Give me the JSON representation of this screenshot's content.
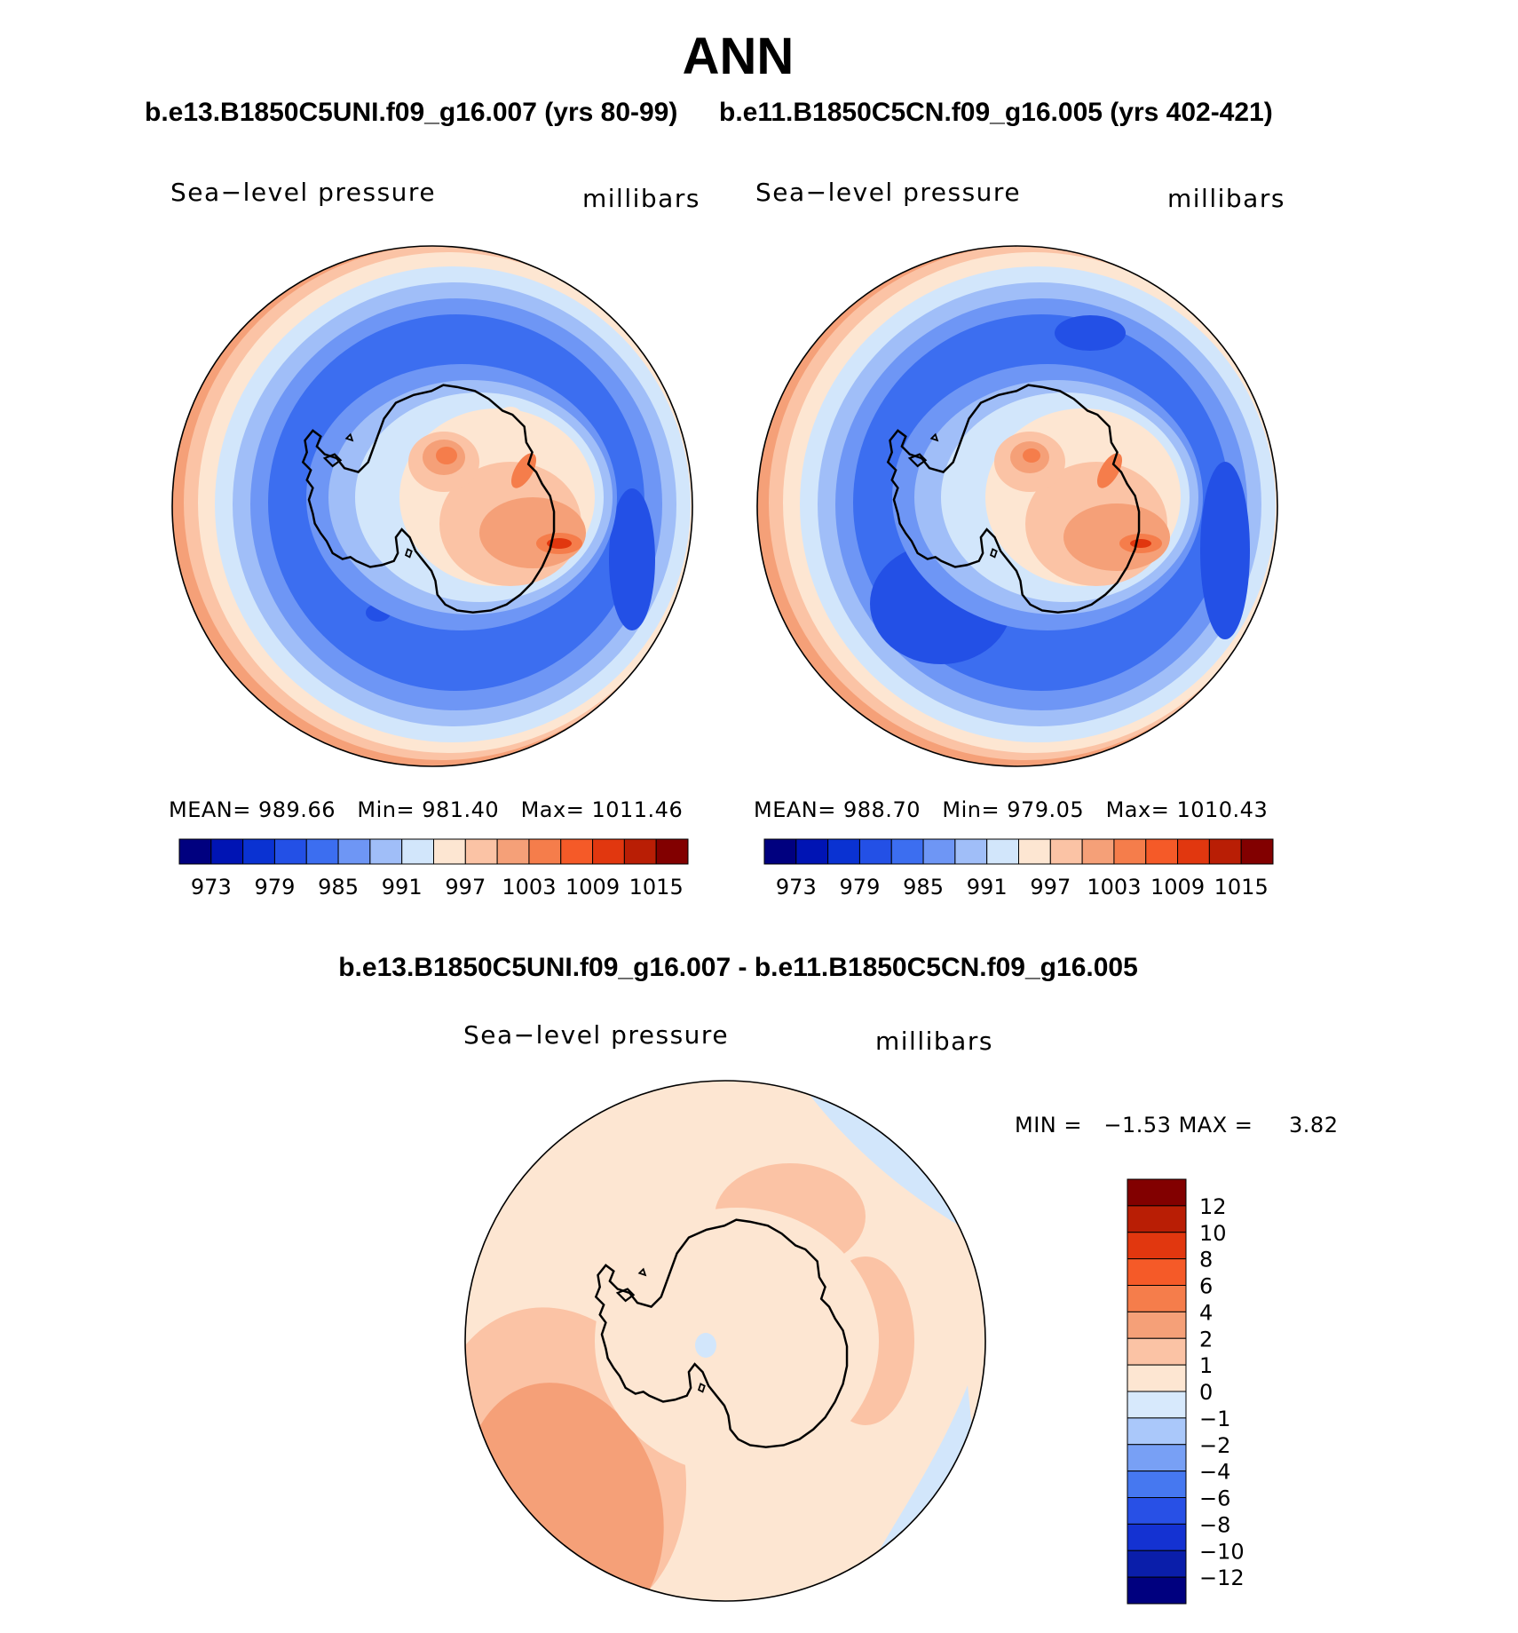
{
  "figure_title": "ANN",
  "panels": [
    {
      "case_title": "b.e13.B1850C5UNI.f09_g16.007 (yrs 80-99)",
      "variable": "Sea−level pressure",
      "units": "millibars",
      "mean_label": "MEAN=",
      "mean": "989.66",
      "min_label": "Min=",
      "min": "981.40",
      "max_label": "Max=",
      "max": "1011.46"
    },
    {
      "case_title": "b.e11.B1850C5CN.f09_g16.005 (yrs 402-421)",
      "variable": "Sea−level pressure",
      "units": "millibars",
      "mean_label": "MEAN=",
      "mean": "988.70",
      "min_label": "Min=",
      "min": "979.05",
      "max_label": "Max=",
      "max": "1010.43"
    }
  ],
  "difference": {
    "title": "b.e13.B1850C5UNI.f09_g16.007 - b.e11.B1850C5CN.f09_g16.005",
    "variable": "Sea−level pressure",
    "units": "millibars",
    "min_label": "MIN =",
    "min": "−1.53",
    "max_label": "MAX =",
    "max": "3.82"
  },
  "colors": {
    "abs_scale": [
      "#00007f",
      "#0014b4",
      "#0a32d2",
      "#2350e6",
      "#3c6ef0",
      "#6e96f5",
      "#a0bef8",
      "#d2e6fb",
      "#fde6d2",
      "#fbc3a5",
      "#f5a078",
      "#f57d4b",
      "#f55a28",
      "#e1370f",
      "#b91e05",
      "#820000"
    ],
    "diff_scale": [
      "#00007f",
      "#0a1eaa",
      "#1432d2",
      "#2850e6",
      "#4678f0",
      "#78a0f5",
      "#aac8fa",
      "#d7e9fc",
      "#fde6d2",
      "#fbc3a5",
      "#f5a078",
      "#f57d4b",
      "#f55a28",
      "#e1370f",
      "#b91e05",
      "#820000"
    ]
  },
  "chart_data": [
    {
      "type": "heatmap",
      "title": "Sea-level pressure (b.e13.B1850C5UNI.f09_g16.007, yrs 80-99)",
      "projection": "south polar stereographic",
      "units": "millibars",
      "levels": [
        973,
        976,
        979,
        982,
        985,
        988,
        991,
        994,
        997,
        1000,
        1003,
        1006,
        1009,
        1012,
        1015
      ],
      "colorbar_tick_labels": [
        "973",
        "979",
        "985",
        "991",
        "997",
        "1003",
        "1009",
        "1015"
      ],
      "mean": 989.66,
      "min": 981.4,
      "max": 1011.46
    },
    {
      "type": "heatmap",
      "title": "Sea-level pressure (b.e11.B1850C5CN.f09_g16.005, yrs 402-421)",
      "projection": "south polar stereographic",
      "units": "millibars",
      "levels": [
        973,
        976,
        979,
        982,
        985,
        988,
        991,
        994,
        997,
        1000,
        1003,
        1006,
        1009,
        1012,
        1015
      ],
      "colorbar_tick_labels": [
        "973",
        "979",
        "985",
        "991",
        "997",
        "1003",
        "1009",
        "1015"
      ],
      "mean": 988.7,
      "min": 979.05,
      "max": 1010.43
    },
    {
      "type": "heatmap",
      "title": "Sea-level pressure difference",
      "projection": "south polar stereographic",
      "units": "millibars",
      "levels": [
        -12,
        -10,
        -8,
        -6,
        -4,
        -2,
        -1,
        0,
        1,
        2,
        4,
        6,
        8,
        10,
        12
      ],
      "colorbar_tick_labels": [
        "12",
        "10",
        "8",
        "6",
        "4",
        "2",
        "1",
        "0",
        "−1",
        "−2",
        "−4",
        "−6",
        "−8",
        "−10",
        "−12"
      ],
      "min": -1.53,
      "max": 3.82
    }
  ]
}
